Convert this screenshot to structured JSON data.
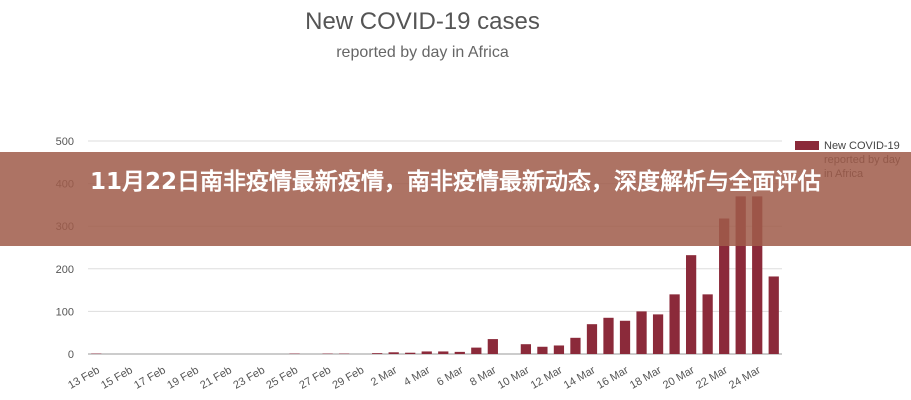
{
  "chart_data": {
    "type": "bar",
    "title": "New COVID-19 cases",
    "subtitle": "reported by day in Africa",
    "categories": [
      "13 Feb",
      "14 Feb",
      "15 Feb",
      "16 Feb",
      "17 Feb",
      "18 Feb",
      "19 Feb",
      "20 Feb",
      "21 Feb",
      "22 Feb",
      "23 Feb",
      "24 Feb",
      "25 Feb",
      "26 Feb",
      "27 Feb",
      "28 Feb",
      "29 Feb",
      "1 Mar",
      "2 Mar",
      "3 Mar",
      "4 Mar",
      "5 Mar",
      "6 Mar",
      "7 Mar",
      "8 Mar",
      "9 Mar",
      "10 Mar",
      "11 Mar",
      "12 Mar",
      "13 Mar",
      "14 Mar",
      "15 Mar",
      "16 Mar",
      "17 Mar",
      "18 Mar",
      "19 Mar",
      "20 Mar",
      "21 Mar",
      "22 Mar",
      "23 Mar",
      "24 Mar",
      "25 Mar"
    ],
    "tick_labels": [
      "13 Feb",
      "15 Feb",
      "17 Feb",
      "19 Feb",
      "21 Feb",
      "23 Feb",
      "25 Feb",
      "27 Feb",
      "29 Feb",
      "2 Mar",
      "4 Mar",
      "6 Mar",
      "8 Mar",
      "10 Mar",
      "12 Mar",
      "14 Mar",
      "16 Mar",
      "18 Mar",
      "20 Mar",
      "22 Mar",
      "24 Mar"
    ],
    "series": [
      {
        "name": "New COVID-19 reported by day in Africa",
        "color": "#8b2a3a",
        "values": [
          1,
          0,
          0,
          0,
          0,
          0,
          0,
          0,
          0,
          0,
          0,
          0,
          1,
          0,
          1,
          1,
          0,
          2,
          4,
          3,
          6,
          6,
          5,
          15,
          35,
          0,
          23,
          17,
          20,
          38,
          70,
          85,
          78,
          100,
          93,
          140,
          232,
          140,
          318,
          370,
          370,
          182
        ]
      }
    ],
    "yticks": [
      0,
      100,
      200,
      300,
      400,
      500
    ],
    "ylim": [
      0,
      500
    ],
    "grid": true,
    "legend_position": "right"
  },
  "overlay": {
    "headline": "11月22日南非疫情最新疫情，南非疫情最新动态，深度解析与全面评估"
  }
}
